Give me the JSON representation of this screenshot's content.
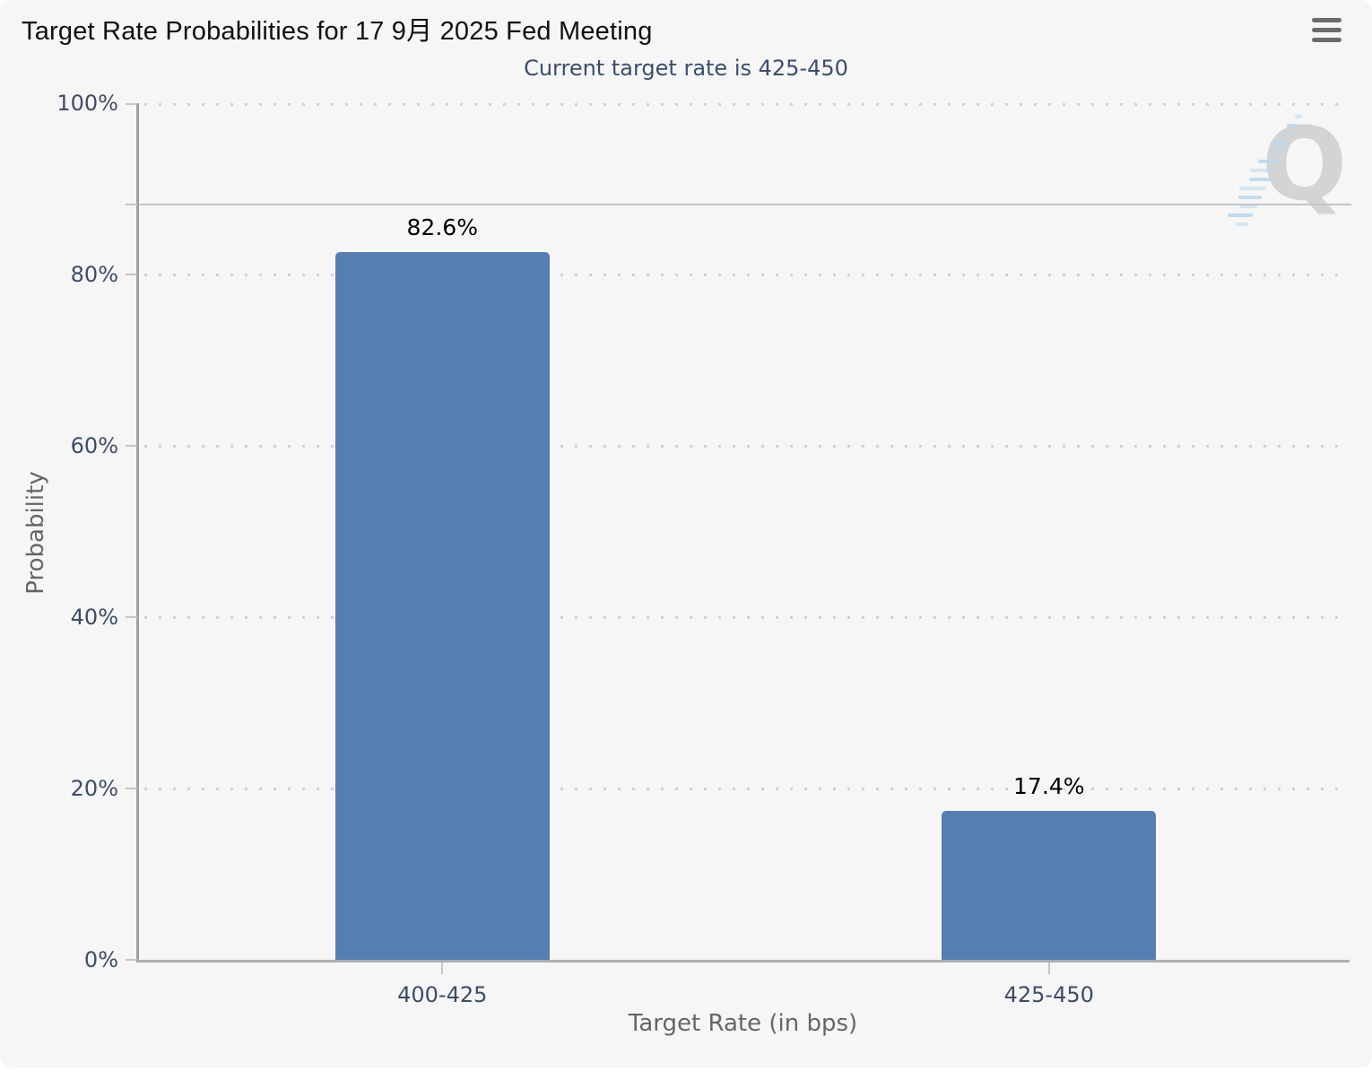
{
  "header": {
    "menu_tooltip": "chart context menu"
  },
  "watermark": {
    "letter": "Q"
  },
  "colors": {
    "panel_bg": "#f5f6f5",
    "bar": "#567eb1",
    "axis": "#a0a0a0",
    "baseline": "#aeaeae",
    "grid_dot": "#d2d2d2",
    "tick": "#c6c6c6",
    "tick_label": "#3e4c66",
    "subtitle": "#3d4d70",
    "axis_title": "#666666",
    "ref_line": "#c4c4c4",
    "title": "#111111",
    "watermark_q": "#c9c9c9",
    "watermark_dash": "#bdd7ec"
  },
  "chart_data": {
    "type": "bar",
    "title": "Target Rate Probabilities for 17 9月 2025 Fed Meeting",
    "subtitle": "Current target rate is 425-450",
    "categories": [
      "400-425",
      "425-450"
    ],
    "values": [
      82.6,
      17.4
    ],
    "data_labels": [
      "82.6%",
      "17.4%"
    ],
    "xlabel": "Target Rate (in bps)",
    "ylabel": "Probability",
    "ylim": [
      0,
      100
    ],
    "yticks": [
      {
        "value": 0,
        "label": "0%"
      },
      {
        "value": 20,
        "label": "20%"
      },
      {
        "value": 40,
        "label": "40%"
      },
      {
        "value": 60,
        "label": "60%"
      },
      {
        "value": 80,
        "label": "80%"
      },
      {
        "value": 100,
        "label": "100%"
      }
    ],
    "grid": "dotted-horizontal",
    "legend": "none",
    "reference_line": {
      "value": 88.2,
      "style": "solid"
    },
    "bar_color": "#567eb1"
  }
}
